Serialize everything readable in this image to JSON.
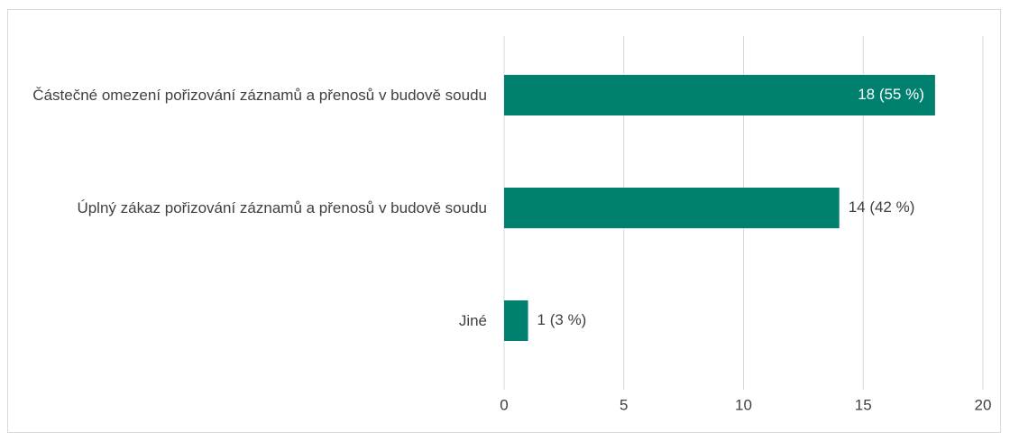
{
  "chart_data": {
    "type": "bar",
    "orientation": "horizontal",
    "categories": [
      "Částečné omezení pořizování záznamů a přenosů v budově soudu",
      "Úplný zákaz pořizování záznamů a přenosů v budově soudu",
      "Jiné"
    ],
    "values": [
      18,
      14,
      1
    ],
    "value_labels": [
      "18 (55 %)",
      "14 (42 %)",
      "1 (3 %)"
    ],
    "color": "#00806f",
    "xlim": [
      0,
      20
    ],
    "xticks": [
      0,
      5,
      10,
      15,
      20
    ],
    "grid": true
  }
}
